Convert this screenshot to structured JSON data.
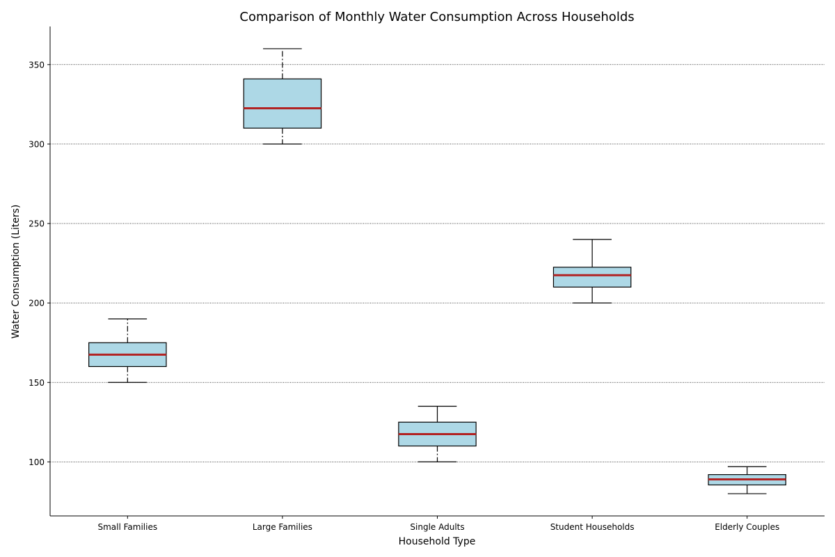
{
  "chart_data": {
    "type": "box",
    "title": "Comparison of Monthly Water Consumption Across Households",
    "xlabel": "Household Type",
    "ylabel": "Water Consumption (Liters)",
    "ylim": [
      66,
      374
    ],
    "yticks": [
      100,
      150,
      200,
      250,
      300,
      350
    ],
    "grid": "y",
    "categories": [
      "Small Families",
      "Large Families",
      "Single Adults",
      "Student Households",
      "Elderly Couples"
    ],
    "boxes": [
      {
        "category": "Small Families",
        "min": 150,
        "q1": 160,
        "median": 167.5,
        "q3": 175,
        "max": 190,
        "whisker_style": "dashdot"
      },
      {
        "category": "Large Families",
        "min": 300,
        "q1": 310,
        "median": 322.5,
        "q3": 341,
        "max": 360,
        "whisker_style": "dashdot"
      },
      {
        "category": "Single Adults",
        "min": 100,
        "q1": 110,
        "median": 117.5,
        "q3": 125,
        "max": 135,
        "whisker_style": "mixed"
      },
      {
        "category": "Student Households",
        "min": 200,
        "q1": 210,
        "median": 217.5,
        "q3": 222.5,
        "max": 240,
        "whisker_style": "solid"
      },
      {
        "category": "Elderly Couples",
        "min": 80,
        "q1": 85.5,
        "median": 89,
        "q3": 92,
        "max": 97,
        "whisker_style": "solid"
      }
    ],
    "colors": {
      "box_fill": "#add8e6",
      "box_edge": "#000000",
      "median": "#b22222",
      "grid": "#000000"
    }
  }
}
